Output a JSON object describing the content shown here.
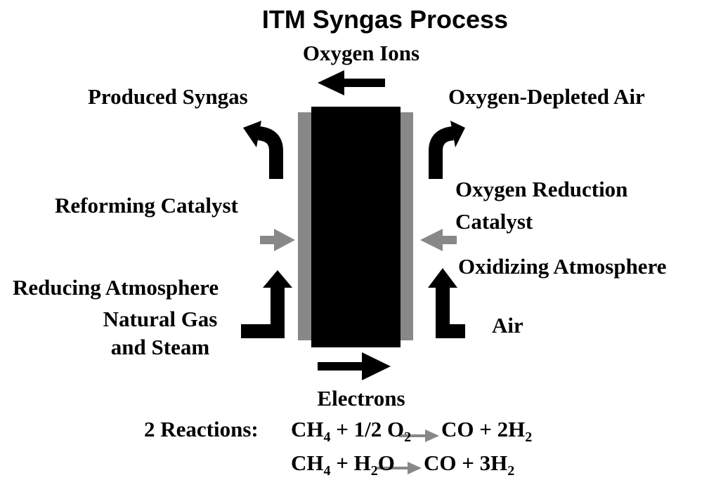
{
  "title": "ITM Syngas Process",
  "labels": {
    "oxygen_ions": "Oxygen Ions",
    "produced_syngas": "Produced Syngas",
    "oxygen_depleted_air": "Oxygen-Depleted Air",
    "reforming_catalyst": "Reforming Catalyst",
    "oxygen_reduction_catalyst": [
      "Oxygen Reduction",
      "Catalyst"
    ],
    "oxidizing_atmosphere": "Oxidizing Atmosphere",
    "reducing_atmosphere": "Reducing Atmosphere",
    "natural_gas": [
      "Natural Gas",
      "and Steam"
    ],
    "air": "Air",
    "electrons": "Electrons"
  },
  "reactions": {
    "prefix": "2 Reactions:",
    "equations": [
      {
        "lhs": [
          {
            "text": "CH"
          },
          {
            "text": "4",
            "sub": true
          },
          {
            "text": " + 1/2 O"
          },
          {
            "text": "2",
            "sub": true
          }
        ],
        "rhs": [
          {
            "text": "CO + 2H"
          },
          {
            "text": "2",
            "sub": true
          }
        ]
      },
      {
        "lhs": [
          {
            "text": "CH"
          },
          {
            "text": "4",
            "sub": true
          },
          {
            "text": " + H"
          },
          {
            "text": "2",
            "sub": true
          },
          {
            "text": "O"
          }
        ],
        "rhs": [
          {
            "text": "CO + 3H"
          },
          {
            "text": "2",
            "sub": true
          }
        ]
      }
    ]
  }
}
